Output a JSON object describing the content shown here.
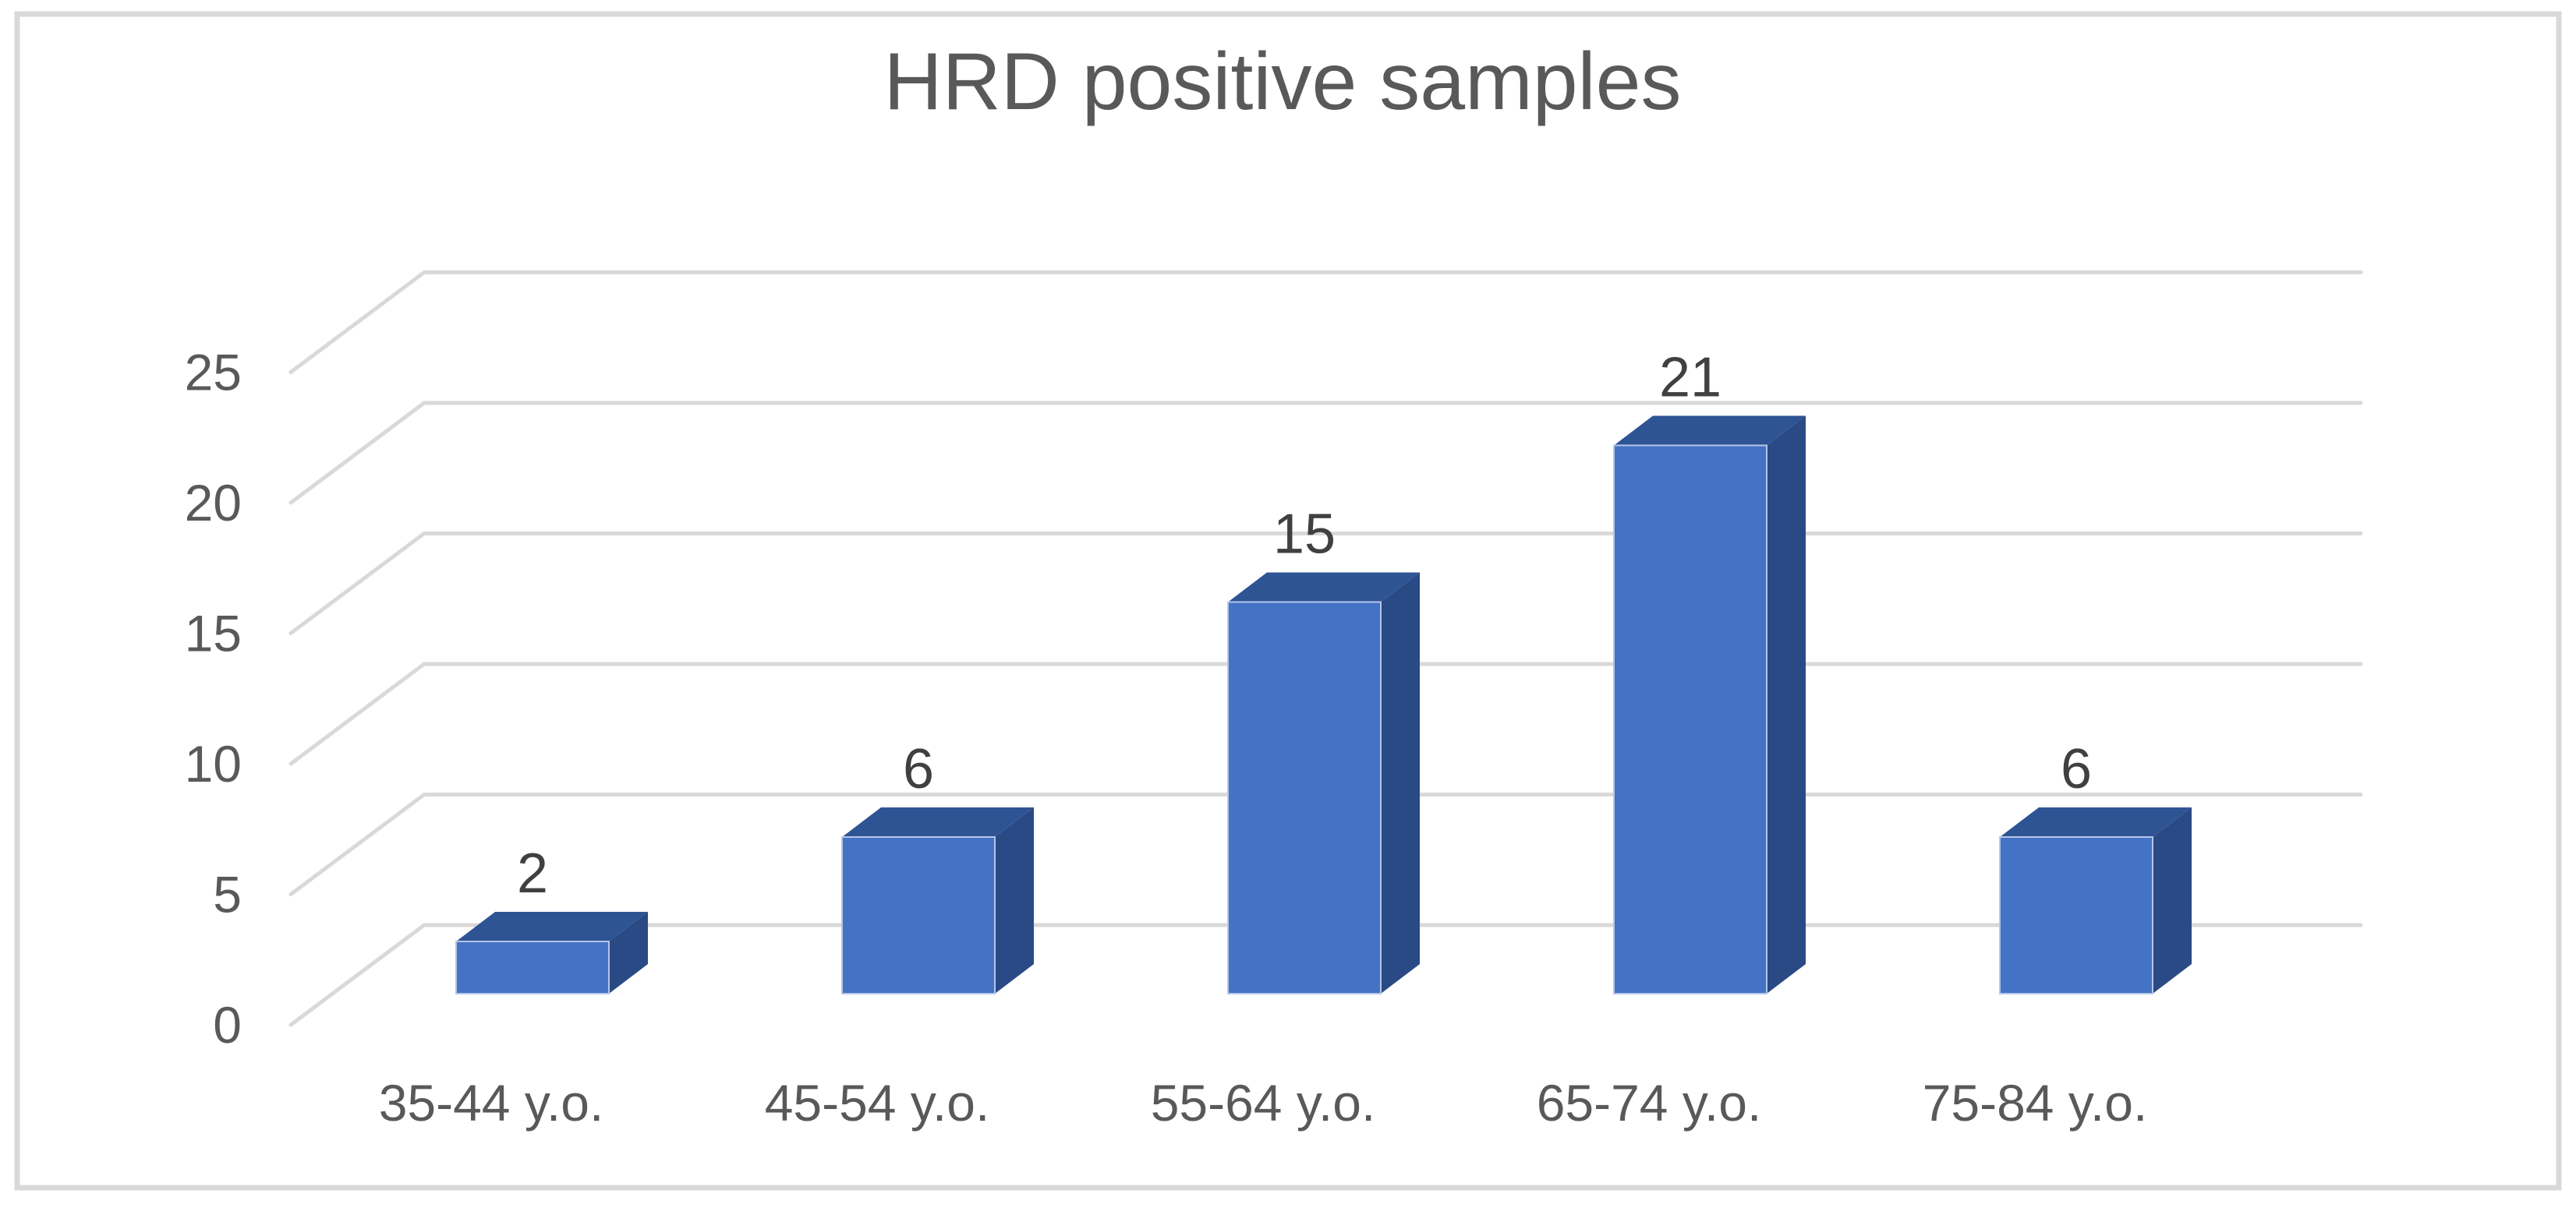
{
  "window": {
    "background": "#FFFFFF"
  },
  "chart_data": {
    "type": "bar",
    "variant": "3d-column",
    "title": "HRD positive samples",
    "categories": [
      "35-44 y.o.",
      "45-54 y.o.",
      "55-64 y.o.",
      "65-74 y.o.",
      "75-84 y.o."
    ],
    "values": [
      2,
      6,
      15,
      21,
      6
    ],
    "data_labels": [
      "2",
      "6",
      "15",
      "21",
      "6"
    ],
    "yticks": [
      0,
      5,
      10,
      15,
      20,
      25
    ],
    "ylim": [
      0,
      25
    ],
    "xlabel": "",
    "ylabel": "",
    "grid": true,
    "legend": false,
    "legend_position": "none"
  },
  "colors": {
    "bar_front": "#4472C4",
    "bar_top": "#2F5494",
    "bar_side": "#2A4A86",
    "bar_front_edge": "#B4C7E7",
    "gridline": "#D9D9D9",
    "frame": "#D9D9D9",
    "title_text": "#595959",
    "axis_text": "#595959",
    "data_label_text": "#404040",
    "background": "#FFFFFF"
  }
}
